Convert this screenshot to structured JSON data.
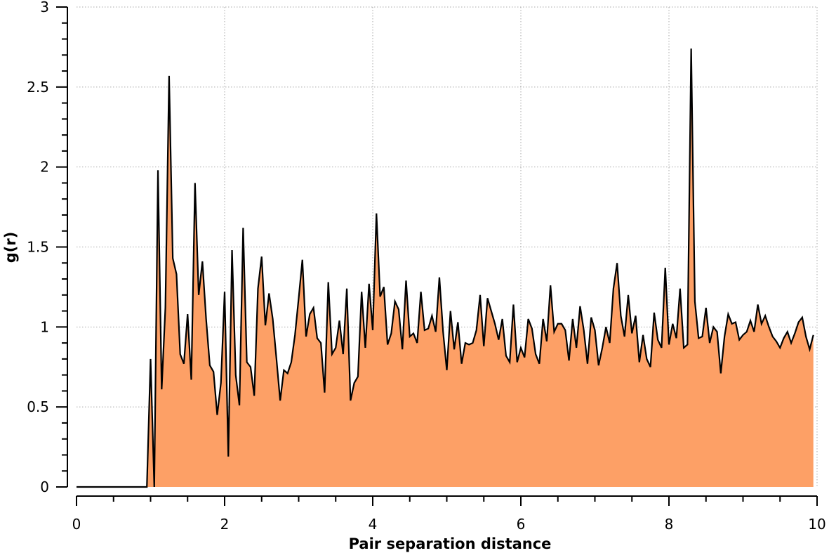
{
  "chart_data": {
    "type": "area",
    "title": "",
    "xlabel": "Pair separation distance",
    "ylabel": "g(r)",
    "xlim": [
      0,
      10
    ],
    "ylim": [
      0,
      3
    ],
    "x_ticks": [
      "0",
      "2",
      "4",
      "6",
      "8",
      "10"
    ],
    "y_ticks": [
      "0",
      "0.5",
      "1",
      "1.5",
      "2",
      "2.5",
      "3"
    ],
    "grid": true,
    "fill_color": "#fda066",
    "line_color": "#000000",
    "x": [
      0.0,
      0.95,
      1.0,
      1.05,
      1.1,
      1.15,
      1.2,
      1.25,
      1.3,
      1.35,
      1.4,
      1.45,
      1.5,
      1.55,
      1.6,
      1.65,
      1.7,
      1.75,
      1.8,
      1.85,
      1.9,
      1.95,
      2.0,
      2.05,
      2.1,
      2.15,
      2.2,
      2.25,
      2.3,
      2.35,
      2.4,
      2.45,
      2.5,
      2.55,
      2.6,
      2.65,
      2.7,
      2.75,
      2.8,
      2.85,
      2.9,
      2.95,
      3.0,
      3.05,
      3.1,
      3.15,
      3.2,
      3.25,
      3.3,
      3.35,
      3.4,
      3.45,
      3.5,
      3.55,
      3.6,
      3.65,
      3.7,
      3.75,
      3.8,
      3.85,
      3.9,
      3.95,
      4.0,
      4.05,
      4.1,
      4.15,
      4.2,
      4.25,
      4.3,
      4.35,
      4.4,
      4.45,
      4.5,
      4.55,
      4.6,
      4.65,
      4.7,
      4.75,
      4.8,
      4.85,
      4.9,
      4.95,
      5.0,
      5.05,
      5.1,
      5.15,
      5.2,
      5.25,
      5.3,
      5.35,
      5.4,
      5.45,
      5.5,
      5.55,
      5.6,
      5.65,
      5.7,
      5.75,
      5.8,
      5.85,
      5.9,
      5.95,
      6.0,
      6.05,
      6.1,
      6.15,
      6.2,
      6.25,
      6.3,
      6.35,
      6.4,
      6.45,
      6.5,
      6.55,
      6.6,
      6.65,
      6.7,
      6.75,
      6.8,
      6.85,
      6.9,
      6.95,
      7.0,
      7.05,
      7.1,
      7.15,
      7.2,
      7.25,
      7.3,
      7.35,
      7.4,
      7.45,
      7.5,
      7.55,
      7.6,
      7.65,
      7.7,
      7.75,
      7.8,
      7.85,
      7.9,
      7.95,
      8.0,
      8.05,
      8.1,
      8.15,
      8.2,
      8.25,
      8.3,
      8.35,
      8.4,
      8.45,
      8.5,
      8.55,
      8.6,
      8.65,
      8.7,
      8.75,
      8.8,
      8.85,
      8.9,
      8.95,
      9.0,
      9.05,
      9.1,
      9.15,
      9.2,
      9.25,
      9.3,
      9.35,
      9.4,
      9.45,
      9.5,
      9.55,
      9.6,
      9.65,
      9.7,
      9.75,
      9.8,
      9.85,
      9.9,
      9.95
    ],
    "y": [
      0.0,
      0.0,
      0.8,
      0.0,
      1.98,
      0.61,
      1.12,
      2.57,
      1.43,
      1.33,
      0.83,
      0.77,
      1.08,
      0.67,
      1.9,
      1.2,
      1.41,
      1.05,
      0.76,
      0.72,
      0.45,
      0.65,
      1.22,
      0.19,
      1.48,
      0.7,
      0.51,
      1.62,
      0.78,
      0.75,
      0.57,
      1.24,
      1.44,
      1.01,
      1.21,
      1.05,
      0.8,
      0.54,
      0.73,
      0.71,
      0.78,
      0.95,
      1.18,
      1.42,
      0.94,
      1.08,
      1.12,
      0.93,
      0.9,
      0.59,
      1.28,
      0.83,
      0.87,
      1.04,
      0.83,
      1.24,
      0.54,
      0.65,
      0.69,
      1.22,
      0.87,
      1.27,
      0.98,
      1.71,
      1.19,
      1.25,
      0.89,
      0.96,
      1.16,
      1.11,
      0.86,
      1.29,
      0.94,
      0.96,
      0.9,
      1.22,
      0.98,
      0.99,
      1.07,
      0.97,
      1.31,
      0.97,
      0.73,
      1.1,
      0.86,
      1.03,
      0.77,
      0.9,
      0.89,
      0.9,
      0.98,
      1.2,
      0.88,
      1.18,
      1.1,
      1.02,
      0.92,
      1.05,
      0.82,
      0.78,
      1.14,
      0.78,
      0.87,
      0.81,
      1.05,
      0.99,
      0.83,
      0.77,
      1.05,
      0.91,
      1.26,
      0.97,
      1.02,
      1.02,
      0.98,
      0.79,
      1.05,
      0.87,
      1.13,
      0.98,
      0.77,
      1.06,
      0.98,
      0.76,
      0.87,
      1.0,
      0.9,
      1.24,
      1.4,
      1.07,
      0.94,
      1.2,
      0.96,
      1.07,
      0.78,
      0.95,
      0.8,
      0.75,
      1.09,
      0.92,
      0.87,
      1.37,
      0.89,
      1.02,
      0.93,
      1.24,
      0.87,
      0.89,
      2.74,
      1.16,
      0.93,
      0.94,
      1.12,
      0.9,
      1.0,
      0.97,
      0.71,
      0.94,
      1.08,
      1.02,
      1.03,
      0.92,
      0.95,
      0.97,
      1.04,
      0.97,
      1.14,
      1.02,
      1.07,
      1.0,
      0.94,
      0.91,
      0.87,
      0.93,
      0.97,
      0.9,
      0.96,
      1.03,
      1.06,
      0.94,
      0.86,
      0.95
    ]
  }
}
